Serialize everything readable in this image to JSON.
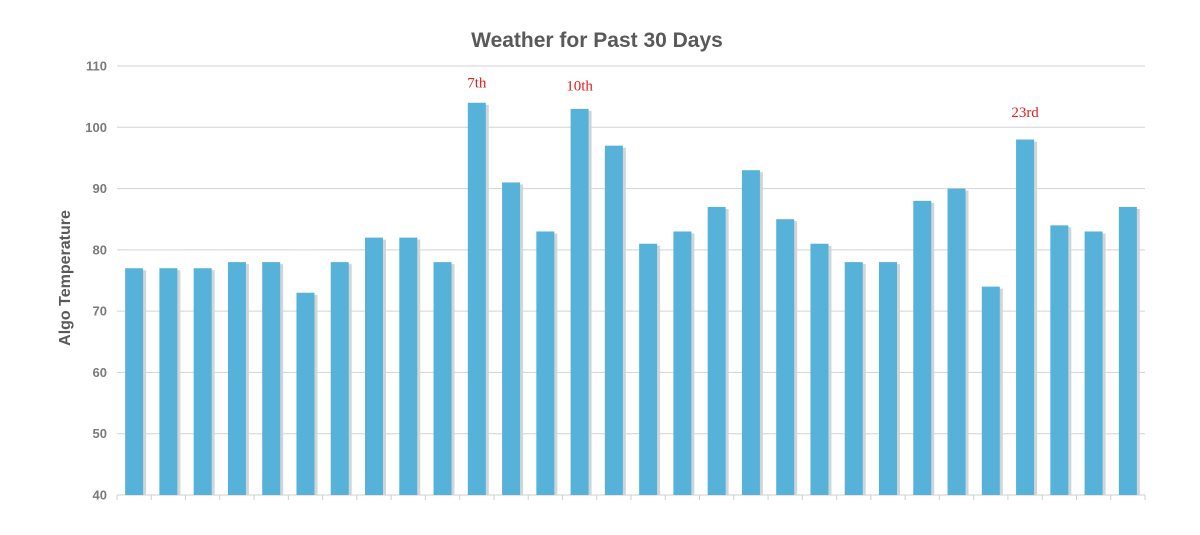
{
  "chart_data": {
    "type": "bar",
    "title": "Weather for Past 30 Days",
    "xlabel": "",
    "ylabel": "Algo Temperature",
    "ylim": [
      40,
      110
    ],
    "yticks": [
      40,
      50,
      60,
      70,
      80,
      90,
      100,
      110
    ],
    "grid": true,
    "legend": "none",
    "bar_color": "#57b2d9",
    "annotation_color": "#e0201c",
    "values": [
      77,
      77,
      77,
      78,
      78,
      73,
      78,
      82,
      82,
      78,
      104,
      91,
      83,
      103,
      97,
      81,
      83,
      87,
      93,
      85,
      81,
      78,
      78,
      88,
      90,
      74,
      98,
      84,
      83,
      87
    ],
    "annotations": [
      {
        "index": 10,
        "text": "7th",
        "y": 106.5
      },
      {
        "index": 13,
        "text": "10th",
        "y": 106
      },
      {
        "index": 26,
        "text": "23rd",
        "y": 101.7
      }
    ]
  }
}
